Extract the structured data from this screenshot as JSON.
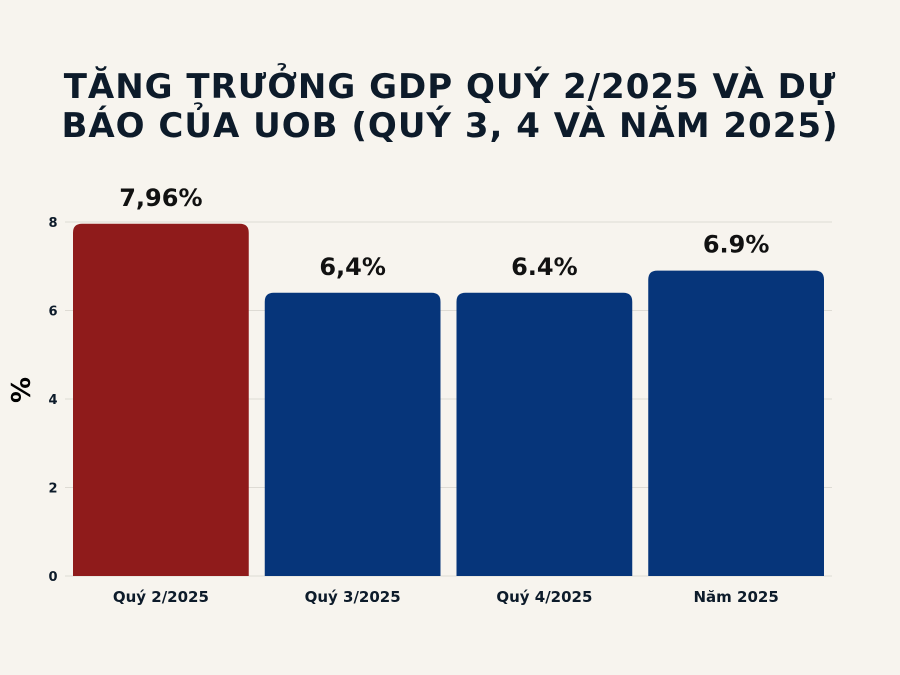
{
  "chart_data": {
    "type": "bar",
    "title_lines": [
      "TĂNG TRƯỞNG GDP QUÝ 2/2025 VÀ DỰ",
      "BÁO CỦA UOB (QUÝ 3, 4 VÀ NĂM 2025)"
    ],
    "ylabel": "%",
    "xlabel": "",
    "ylim": [
      0,
      8
    ],
    "yticks": [
      0,
      2,
      4,
      6,
      8
    ],
    "ytick_labels": [
      "0",
      "2",
      "4",
      "6",
      "8"
    ],
    "grid": true,
    "categories": [
      "Quý 2/2025",
      "Quý 3/2025",
      "Quý 4/2025",
      "Năm 2025"
    ],
    "values": [
      7.96,
      6.4,
      6.4,
      6.9
    ],
    "data_labels": [
      "7,96%",
      "6,4%",
      "6.4%",
      "6.9%"
    ],
    "colors": [
      "#8f1b1b",
      "#06357a",
      "#06357a",
      "#06357a"
    ],
    "grid_color": "#dedbd4",
    "text_color": "#0d1b2a"
  }
}
